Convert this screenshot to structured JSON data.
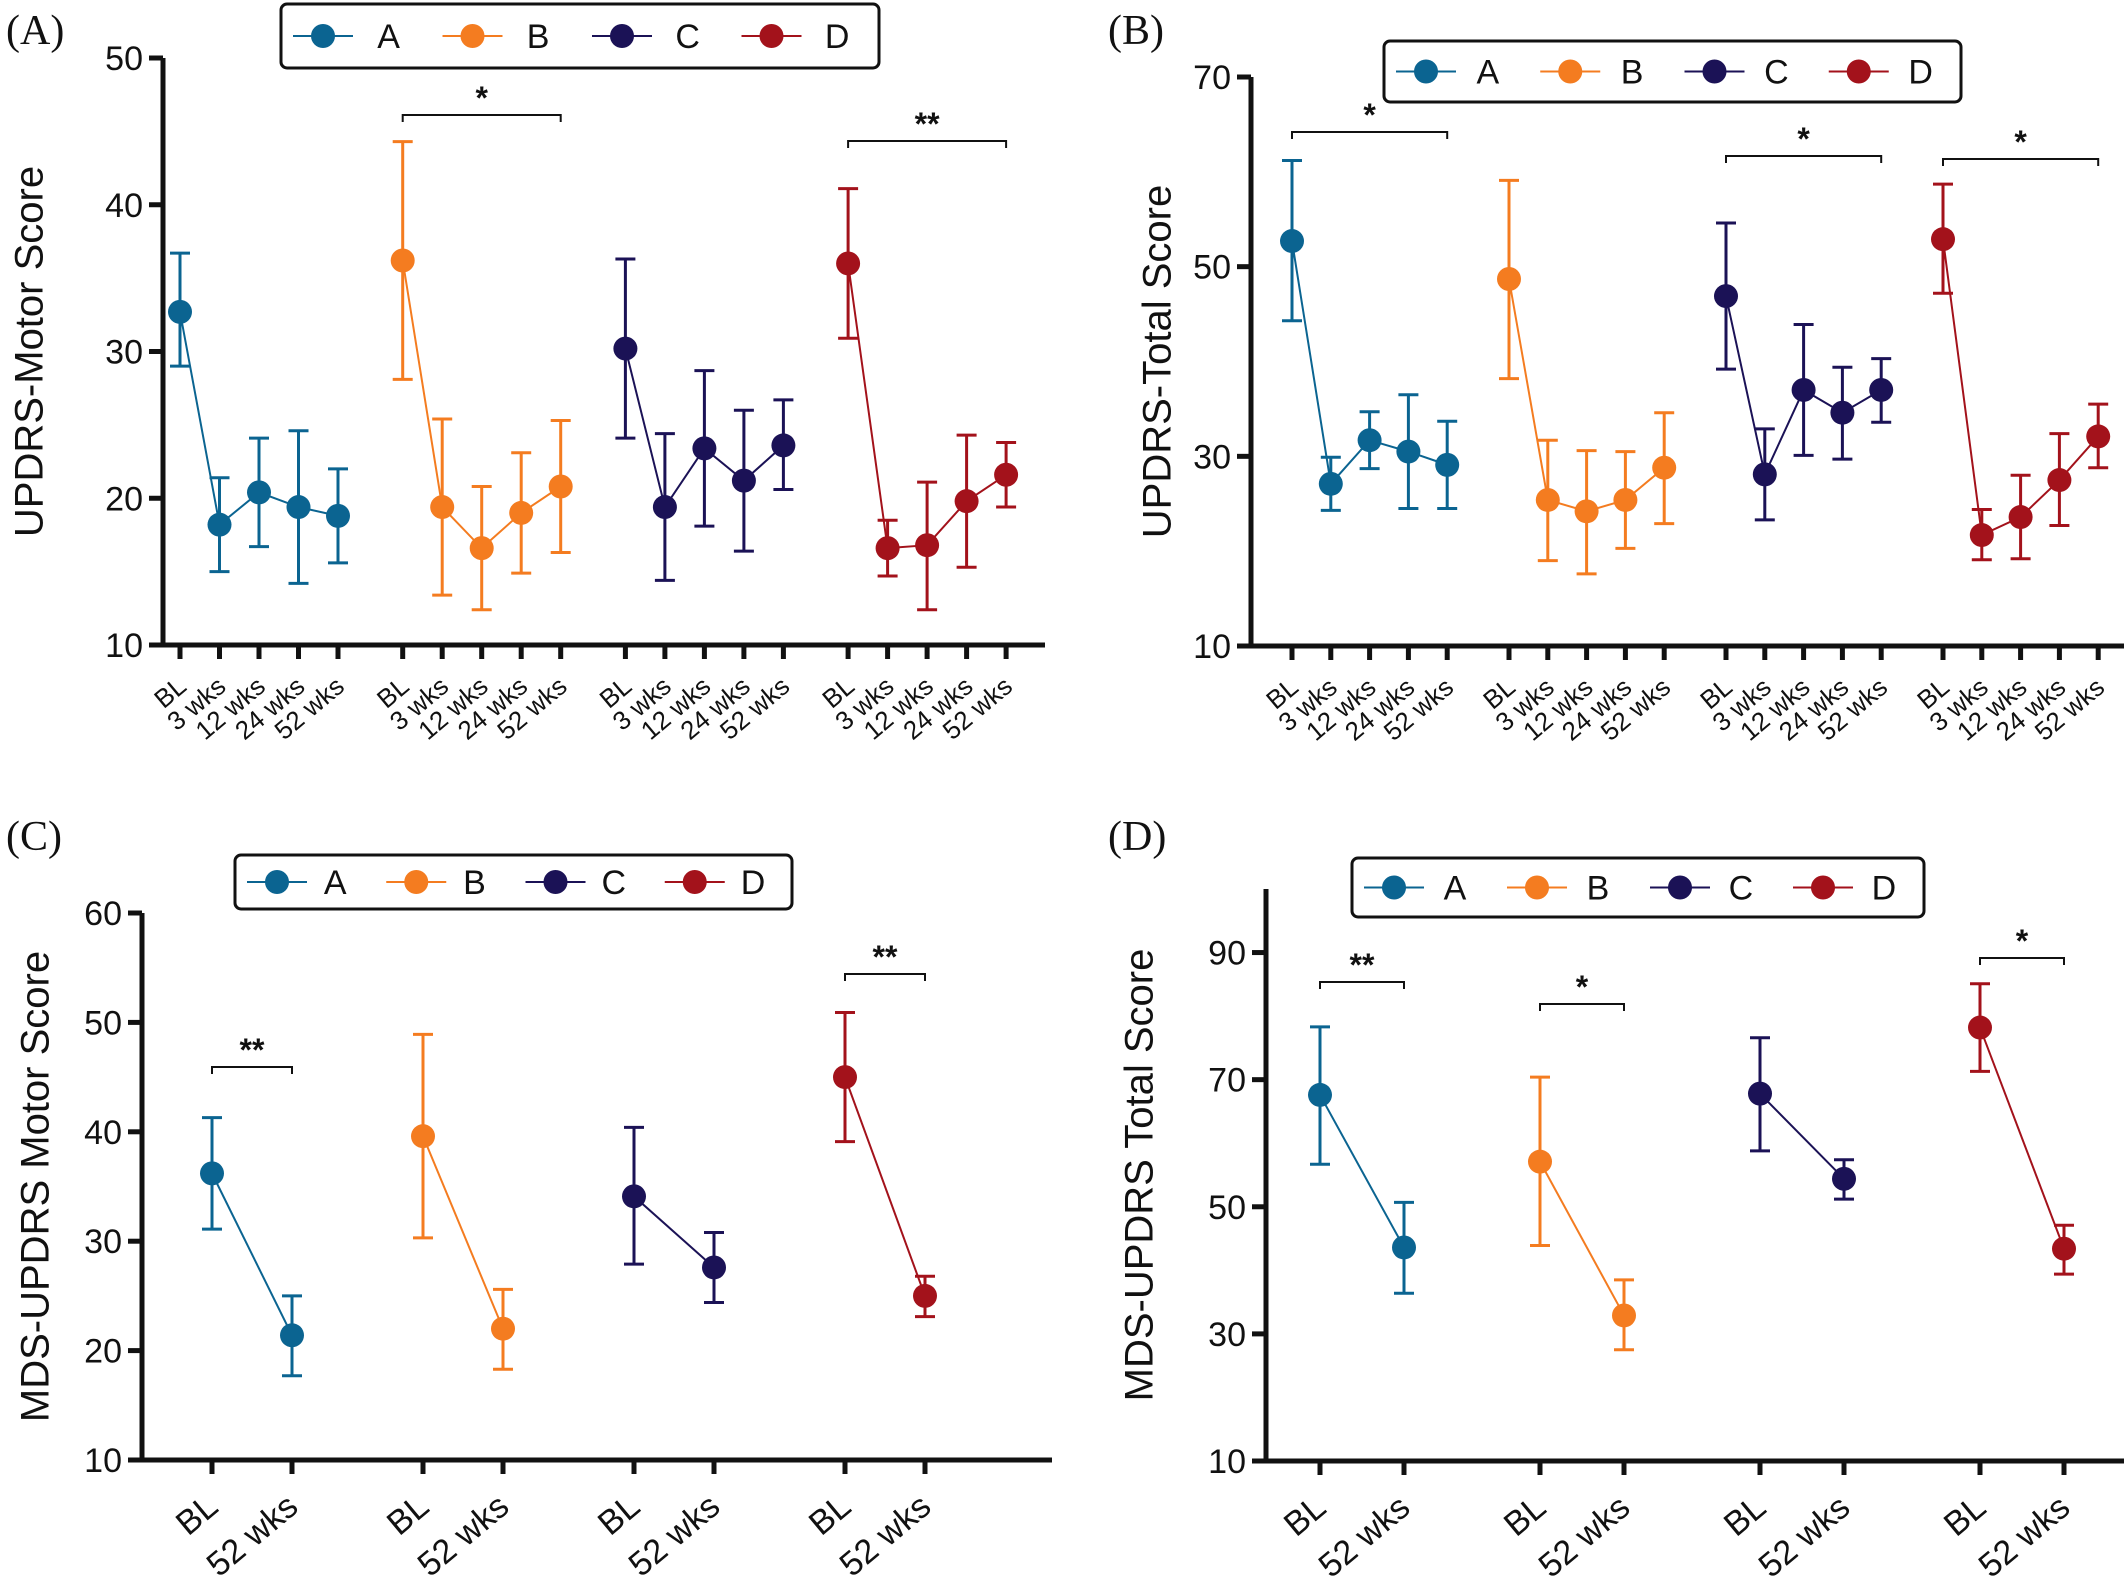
{
  "chart_data": [
    {
      "panel_label": "(A)",
      "type": "line",
      "ylabel": "UPDRS-Motor Score",
      "ylim": [
        10,
        50
      ],
      "yticks": [
        10,
        20,
        30,
        40,
        50
      ],
      "categories": [
        "BL",
        "3 wks",
        "12 wks",
        "24 wks",
        "52 wks"
      ],
      "legend": [
        "A",
        "B",
        "C",
        "D"
      ],
      "legend_placement": "top",
      "grid": false,
      "series": [
        {
          "name": "A",
          "color": "#0b6491",
          "values": [
            32.7,
            18.2,
            20.4,
            19.4,
            18.8
          ],
          "error_low": [
            29.0,
            15.0,
            16.7,
            14.2,
            15.6
          ],
          "error_high": [
            36.7,
            21.4,
            24.1,
            24.6,
            22.0
          ]
        },
        {
          "name": "B",
          "color": "#f47c20",
          "values": [
            36.2,
            19.4,
            16.6,
            19.0,
            20.8
          ],
          "error_low": [
            28.1,
            13.4,
            12.4,
            14.9,
            16.3
          ],
          "error_high": [
            44.3,
            25.4,
            20.8,
            23.1,
            25.3
          ]
        },
        {
          "name": "C",
          "color": "#1b1256",
          "values": [
            30.2,
            19.4,
            23.4,
            21.2,
            23.6
          ],
          "error_low": [
            24.1,
            14.4,
            18.1,
            16.4,
            20.6
          ],
          "error_high": [
            36.3,
            24.4,
            28.7,
            26.0,
            26.7
          ]
        },
        {
          "name": "D",
          "color": "#a3121b",
          "values": [
            36.0,
            16.6,
            16.8,
            19.8,
            21.6
          ],
          "error_low": [
            30.9,
            14.7,
            12.4,
            15.3,
            19.4
          ],
          "error_high": [
            41.1,
            18.5,
            21.1,
            24.3,
            23.8
          ]
        }
      ],
      "significance": [
        {
          "series": "B",
          "label": "*"
        },
        {
          "series": "D",
          "label": "**"
        }
      ]
    },
    {
      "panel_label": "(B)",
      "type": "line",
      "ylabel": "UPDRS-Total Score",
      "ylim": [
        10,
        70
      ],
      "yticks": [
        10,
        30,
        50,
        70
      ],
      "categories": [
        "BL",
        "3 wks",
        "12 wks",
        "24 wks",
        "52 wks"
      ],
      "legend": [
        "A",
        "B",
        "C",
        "D"
      ],
      "legend_placement": "top",
      "grid": false,
      "series": [
        {
          "name": "A",
          "color": "#0b6491",
          "values": [
            52.7,
            27.1,
            31.7,
            30.5,
            29.1
          ],
          "error_low": [
            44.3,
            24.3,
            28.7,
            24.5,
            24.5
          ],
          "error_high": [
            61.2,
            29.9,
            34.7,
            36.5,
            33.7
          ]
        },
        {
          "name": "B",
          "color": "#f47c20",
          "values": [
            48.7,
            25.4,
            24.2,
            25.4,
            28.8
          ],
          "error_low": [
            38.2,
            19.0,
            17.6,
            20.3,
            22.9
          ],
          "error_high": [
            59.1,
            31.7,
            30.6,
            30.5,
            34.6
          ]
        },
        {
          "name": "C",
          "color": "#1b1256",
          "values": [
            46.9,
            28.1,
            37.0,
            34.6,
            37.0
          ],
          "error_low": [
            39.2,
            23.3,
            30.1,
            29.7,
            33.6
          ],
          "error_high": [
            54.6,
            32.9,
            43.9,
            39.4,
            40.3
          ]
        },
        {
          "name": "D",
          "color": "#a3121b",
          "values": [
            52.9,
            21.7,
            23.6,
            27.5,
            32.1
          ],
          "error_low": [
            47.2,
            19.1,
            19.2,
            22.7,
            28.8
          ],
          "error_high": [
            58.7,
            24.4,
            28.0,
            32.4,
            35.5
          ]
        }
      ],
      "significance": [
        {
          "series": "A",
          "label": "*"
        },
        {
          "series": "C",
          "label": "*"
        },
        {
          "series": "D",
          "label": "*"
        }
      ]
    },
    {
      "panel_label": "(C)",
      "type": "line",
      "ylabel": "MDS-UPDRS Motor Score",
      "ylim": [
        10,
        60
      ],
      "yticks": [
        10,
        20,
        30,
        40,
        50,
        60
      ],
      "categories": [
        "BL",
        "52 wks"
      ],
      "legend": [
        "A",
        "B",
        "C",
        "D"
      ],
      "legend_placement": "top",
      "grid": false,
      "series": [
        {
          "name": "A",
          "color": "#0b6491",
          "values": [
            36.2,
            21.4
          ],
          "error_low": [
            31.1,
            17.7
          ],
          "error_high": [
            41.3,
            25.0
          ]
        },
        {
          "name": "B",
          "color": "#f47c20",
          "values": [
            39.6,
            22.0
          ],
          "error_low": [
            30.3,
            18.3
          ],
          "error_high": [
            48.9,
            25.6
          ]
        },
        {
          "name": "C",
          "color": "#1b1256",
          "values": [
            34.1,
            27.6
          ],
          "error_low": [
            27.9,
            24.4
          ],
          "error_high": [
            40.4,
            30.8
          ]
        },
        {
          "name": "D",
          "color": "#a3121b",
          "values": [
            45.0,
            25.0
          ],
          "error_low": [
            39.1,
            23.1
          ],
          "error_high": [
            50.9,
            26.8
          ]
        }
      ],
      "significance": [
        {
          "series": "A",
          "label": "**"
        },
        {
          "series": "D",
          "label": "**"
        }
      ]
    },
    {
      "panel_label": "(D)",
      "type": "line",
      "ylabel": "MDS-UPDRS Total Score",
      "ylim": [
        10,
        100
      ],
      "yticks": [
        10,
        30,
        50,
        70,
        90
      ],
      "categories": [
        "BL",
        "52 wks"
      ],
      "legend": [
        "A",
        "B",
        "C",
        "D"
      ],
      "legend_placement": "top",
      "grid": false,
      "series": [
        {
          "name": "A",
          "color": "#0b6491",
          "values": [
            67.6,
            43.6
          ],
          "error_low": [
            56.7,
            36.4
          ],
          "error_high": [
            78.3,
            50.7
          ]
        },
        {
          "name": "B",
          "color": "#f47c20",
          "values": [
            57.1,
            32.9
          ],
          "error_low": [
            43.9,
            27.5
          ],
          "error_high": [
            70.4,
            38.5
          ]
        },
        {
          "name": "C",
          "color": "#1b1256",
          "values": [
            67.8,
            54.4
          ],
          "error_low": [
            58.8,
            51.2
          ],
          "error_high": [
            76.6,
            57.4
          ]
        },
        {
          "name": "D",
          "color": "#a3121b",
          "values": [
            78.2,
            43.4
          ],
          "error_low": [
            71.3,
            39.4
          ],
          "error_high": [
            85.1,
            47.1
          ]
        }
      ],
      "significance": [
        {
          "series": "A",
          "label": "**"
        },
        {
          "series": "B",
          "label": "*"
        },
        {
          "series": "D",
          "label": "*"
        }
      ]
    }
  ]
}
